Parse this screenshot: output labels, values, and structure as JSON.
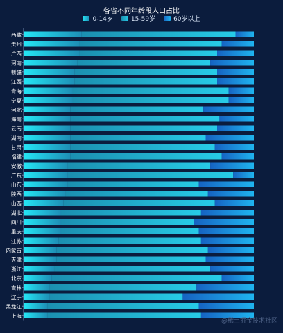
{
  "page": {
    "watermark": "@稀土掘金技术社区"
  },
  "chart_data": {
    "type": "bar",
    "orientation": "horizontal",
    "stacked": true,
    "title": "各省不同年龄段人口占比",
    "categories": [
      "西藏",
      "贵州",
      "广西",
      "河南",
      "新疆",
      "江西",
      "青海",
      "宁夏",
      "河北",
      "海南",
      "云南",
      "湖南",
      "甘肃",
      "福建",
      "安徽",
      "广东",
      "山东",
      "陕西",
      "山西",
      "湖北",
      "四川",
      "重庆",
      "江苏",
      "内蒙古",
      "天津",
      "浙江",
      "北京",
      "吉林",
      "辽宁",
      "黑龙江",
      "上海"
    ],
    "series": [
      {
        "name": "0-14岁",
        "values": [
          25,
          24,
          24,
          23,
          22,
          22,
          21,
          21,
          20,
          20,
          20,
          20,
          20,
          20,
          19,
          19,
          19,
          18,
          17,
          16,
          16,
          16,
          15,
          14,
          14,
          13,
          12,
          11,
          11,
          10,
          10
        ],
        "colors": [
          "#24e4f4",
          "#1e8fb6"
        ]
      },
      {
        "name": "15-59岁",
        "values": [
          67,
          62,
          60,
          58,
          62,
          62,
          68,
          68,
          58,
          65,
          64,
          59,
          63,
          66,
          62,
          72,
          57,
          62,
          66,
          61,
          58,
          60,
          62,
          66,
          65,
          68,
          74,
          64,
          58,
          66,
          67
        ],
        "colors": [
          "#1b8fb0",
          "#27cbe7"
        ]
      },
      {
        "name": "60岁以上",
        "values": [
          8,
          14,
          16,
          19,
          16,
          16,
          11,
          11,
          22,
          15,
          16,
          21,
          17,
          14,
          19,
          9,
          24,
          20,
          17,
          23,
          26,
          24,
          23,
          20,
          21,
          19,
          14,
          25,
          31,
          24,
          23
        ],
        "colors": [
          "#1663c2",
          "#1fb4ef"
        ]
      }
    ],
    "xlim": [
      0,
      100
    ],
    "grid": false,
    "legend_position": "top"
  }
}
